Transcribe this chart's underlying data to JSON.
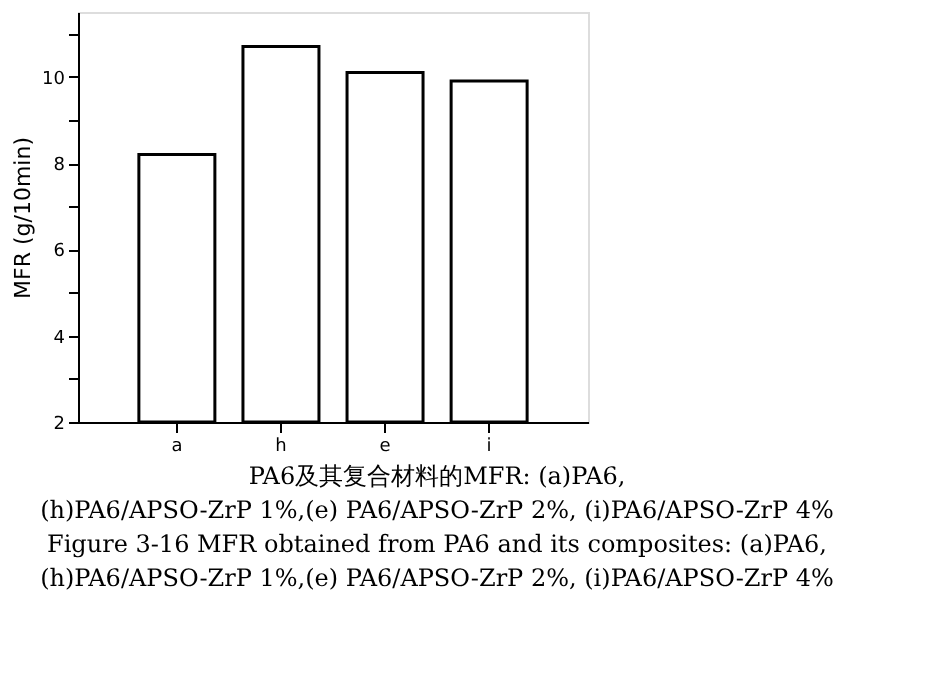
{
  "chart_data": {
    "type": "bar",
    "ylabel": "MFR (g/10min)",
    "categories": [
      "a",
      "h",
      "e",
      "i"
    ],
    "series": [
      {
        "color": "#ffffff",
        "values": [
          8.2,
          10.7,
          10.1,
          9.9
        ]
      }
    ],
    "ylim": [
      2,
      11.5
    ],
    "yticks": [
      2,
      {
        "value": 3,
        "label": null
      },
      4,
      {
        "value": 5,
        "label": null
      },
      6,
      {
        "value": 7,
        "label": null
      },
      8,
      {
        "value": 9,
        "label": null
      },
      10,
      {
        "value": 11,
        "label": null
      }
    ],
    "grid": false,
    "annotations": [
      "PA6及其复合材料的MFR: (a)PA6,",
      "(h)PA6/APSO-ZrP 1%,(e) PA6/APSO-ZrP 2%, (i)PA6/APSO-ZrP 4%",
      "Figure 3-16 MFR obtained from PA6 and its composites: (a)PA6,",
      "(h)PA6/APSO-ZrP 1%,(e) PA6/APSO-ZrP 2%, (i)PA6/APSO-ZrP 4%"
    ]
  }
}
